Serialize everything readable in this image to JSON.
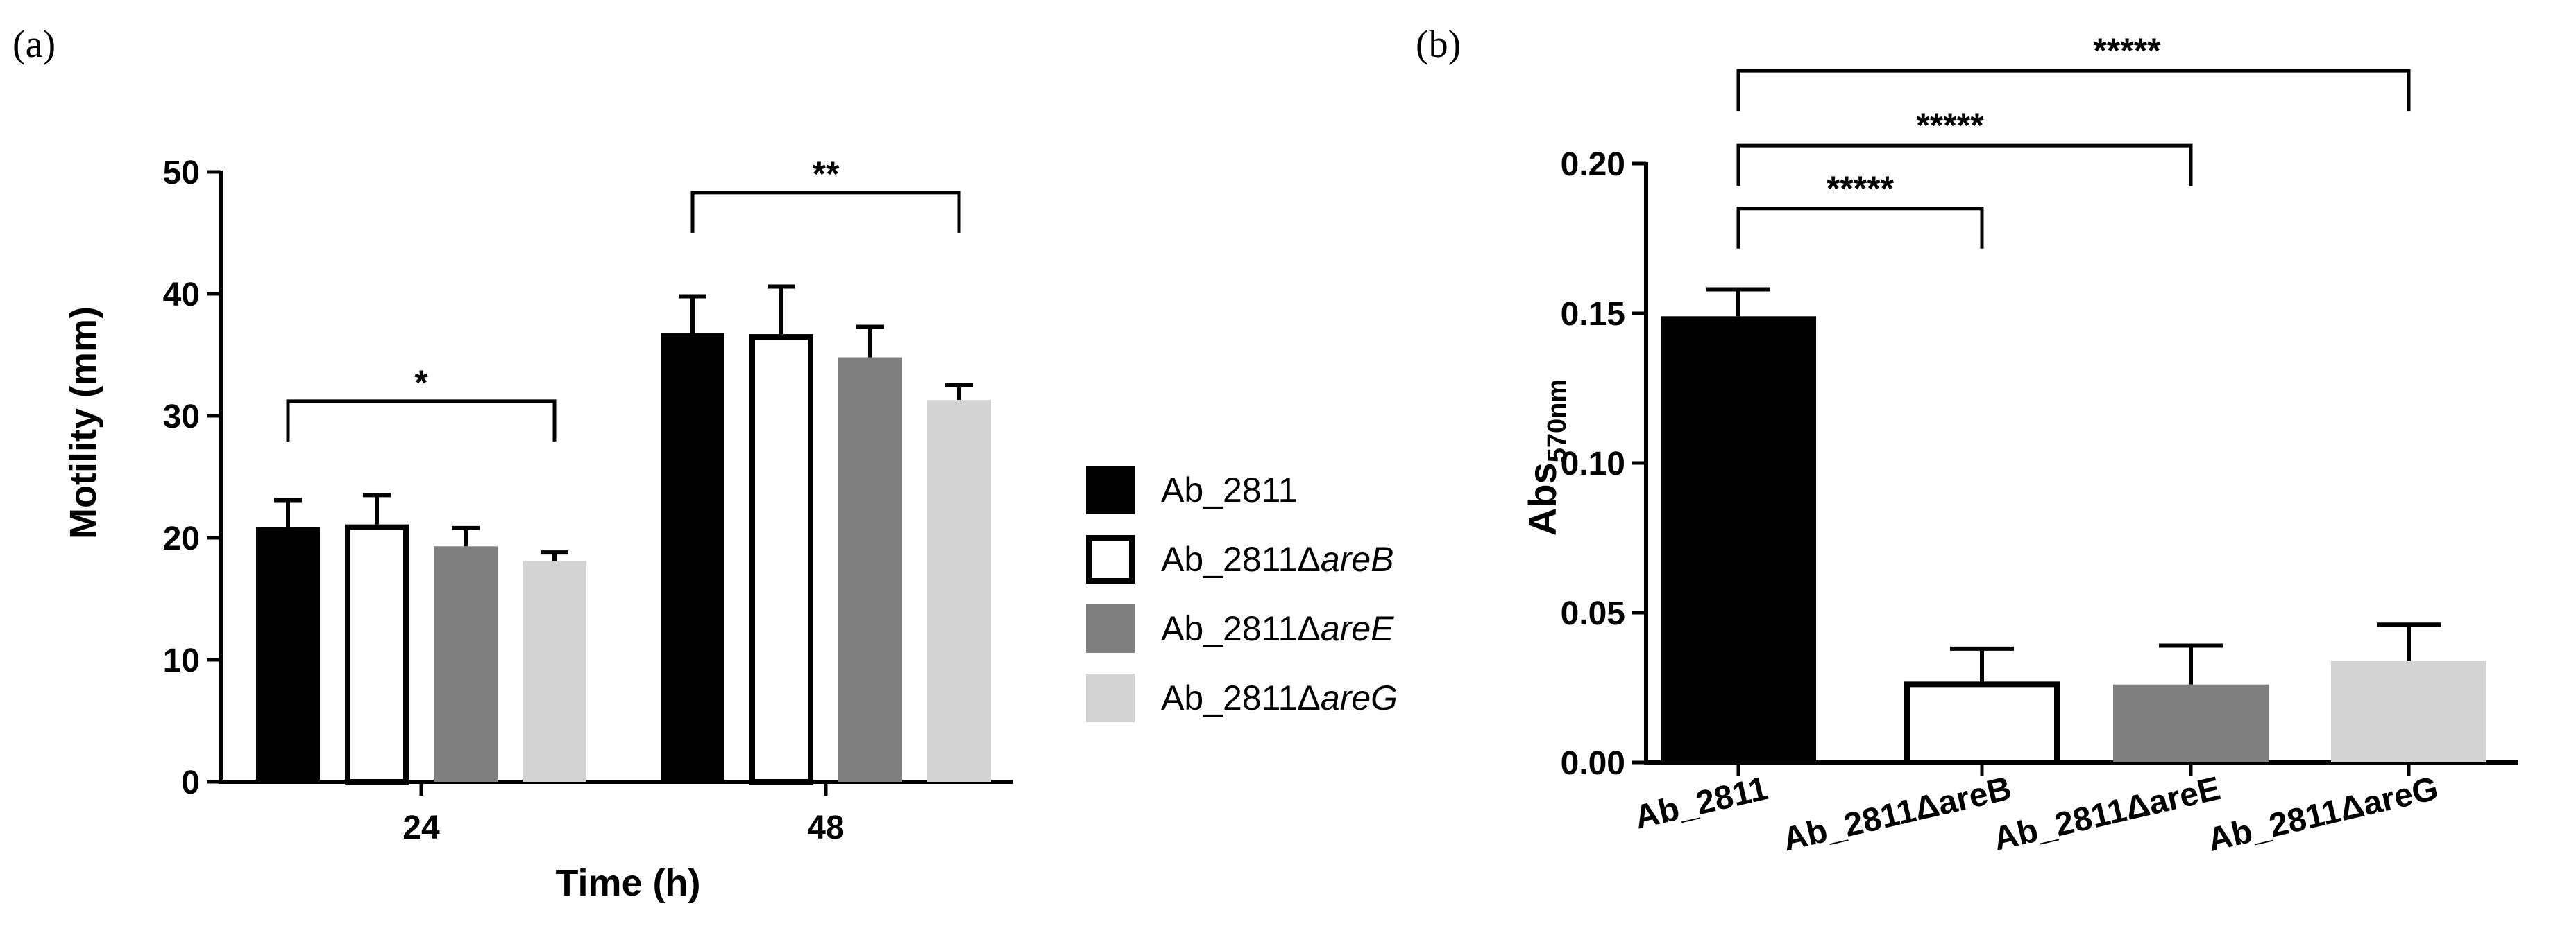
{
  "chart_data": [
    {
      "panel_label": "(a)",
      "type": "bar",
      "xlabel": "Time (h)",
      "ylabel": "Motility (mm)",
      "ylim": [
        0,
        50
      ],
      "yticks": [
        "0",
        "10",
        "20",
        "30",
        "40",
        "50"
      ],
      "categories": [
        "24",
        "48"
      ],
      "grid": false,
      "legend_position": "right",
      "series": [
        {
          "name": "Ab_2811",
          "name_prefix": "Ab_2811",
          "name_suffix": "",
          "color": "#000000",
          "values": [
            20.9,
            36.8
          ],
          "errors": [
            2.2,
            3.0
          ]
        },
        {
          "name": "Ab_2811ΔareB",
          "name_prefix": "Ab_2811Δ",
          "name_suffix": "areB",
          "color": "#ffffff",
          "values": [
            21.1,
            36.7
          ],
          "errors": [
            2.4,
            3.9
          ]
        },
        {
          "name": "Ab_2811ΔareE",
          "name_prefix": "Ab_2811Δ",
          "name_suffix": "areE",
          "color": "#7f7f7f",
          "values": [
            19.3,
            34.8
          ],
          "errors": [
            1.5,
            2.5
          ]
        },
        {
          "name": "Ab_2811ΔareG",
          "name_prefix": "Ab_2811Δ",
          "name_suffix": "areG",
          "color": "#d3d3d3",
          "values": [
            18.1,
            31.3
          ],
          "errors": [
            0.7,
            1.2
          ]
        }
      ],
      "significance": [
        {
          "group": 0,
          "from_series": 0,
          "to_series": 3,
          "label": "*",
          "y": 31.2
        },
        {
          "group": 1,
          "from_series": 0,
          "to_series": 3,
          "label": "**",
          "y": 48.3
        }
      ]
    },
    {
      "panel_label": "(b)",
      "type": "bar",
      "xlabel": "",
      "ylabel_main": "Abs",
      "ylabel_sub": "570nm",
      "ylim": [
        0,
        0.2
      ],
      "yticks": [
        "0.00",
        "0.05",
        "0.10",
        "0.15",
        "0.20"
      ],
      "grid": false,
      "categories": [
        "Ab_2811",
        "Ab_2811ΔareB",
        "Ab_2811ΔareE",
        "Ab_2811ΔareG"
      ],
      "colors": [
        "#000000",
        "#ffffff",
        "#7f7f7f",
        "#d3d3d3"
      ],
      "values": [
        0.149,
        0.027,
        0.026,
        0.034
      ],
      "errors": [
        0.009,
        0.011,
        0.013,
        0.012
      ],
      "significance": [
        {
          "from": 0,
          "to": 1,
          "label": "*****",
          "y": 0.185
        },
        {
          "from": 0,
          "to": 2,
          "label": "*****",
          "y": 0.206
        },
        {
          "from": 0,
          "to": 3,
          "label": "*****",
          "y": 0.231
        }
      ]
    }
  ]
}
